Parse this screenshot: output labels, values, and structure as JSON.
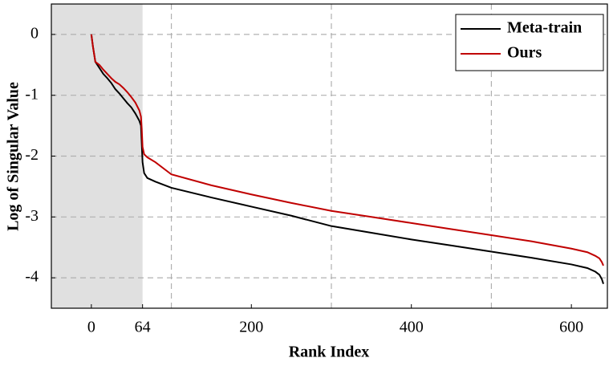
{
  "chart_data": {
    "type": "line",
    "x_label": "Rank Index",
    "y_label": "Log of Singular Value",
    "x": [
      0,
      2,
      5,
      10,
      15,
      20,
      25,
      30,
      35,
      40,
      45,
      50,
      55,
      60,
      62,
      63,
      64,
      66,
      70,
      80,
      100,
      150,
      200,
      250,
      300,
      350,
      400,
      450,
      500,
      550,
      600,
      620,
      630,
      635,
      638,
      640
    ],
    "series": [
      {
        "name": "Meta-train",
        "color": "#000000",
        "values": [
          0,
          -0.2,
          -0.45,
          -0.55,
          -0.65,
          -0.72,
          -0.8,
          -0.9,
          -0.97,
          -1.05,
          -1.13,
          -1.2,
          -1.3,
          -1.42,
          -1.5,
          -1.8,
          -2.1,
          -2.28,
          -2.36,
          -2.42,
          -2.52,
          -2.68,
          -2.83,
          -2.98,
          -3.15,
          -3.26,
          -3.37,
          -3.47,
          -3.57,
          -3.67,
          -3.78,
          -3.84,
          -3.9,
          -3.95,
          -4.02,
          -4.1
        ]
      },
      {
        "name": "Ours",
        "color": "#c00000",
        "values": [
          0,
          -0.2,
          -0.45,
          -0.5,
          -0.58,
          -0.65,
          -0.72,
          -0.78,
          -0.82,
          -0.88,
          -0.95,
          -1.03,
          -1.12,
          -1.25,
          -1.35,
          -1.55,
          -1.85,
          -1.97,
          -2.02,
          -2.1,
          -2.3,
          -2.48,
          -2.63,
          -2.77,
          -2.9,
          -3.0,
          -3.1,
          -3.2,
          -3.3,
          -3.4,
          -3.52,
          -3.58,
          -3.64,
          -3.68,
          -3.74,
          -3.8
        ]
      }
    ],
    "xlim": [
      -50,
      645
    ],
    "ylim": [
      -4.5,
      0.5
    ],
    "xticks": [
      0,
      64,
      200,
      400,
      600
    ],
    "xgrid": [
      100,
      300,
      500
    ],
    "yticks": [
      0,
      -1,
      -2,
      -3,
      -4
    ],
    "shaded_xrange": [
      -50,
      64
    ],
    "shade_color": "#e0e0e0",
    "grid": true,
    "legend": "upper right"
  }
}
